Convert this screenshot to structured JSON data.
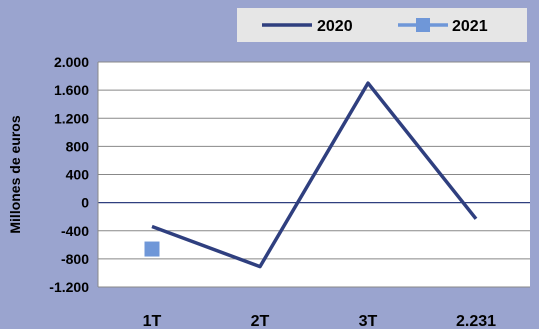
{
  "chart_data": {
    "type": "line",
    "categories": [
      "1T",
      "2T",
      "3T",
      "2.231"
    ],
    "series": [
      {
        "name": "2020",
        "values": [
          -340,
          -910,
          1700,
          -230
        ],
        "color": "#2f3f7f",
        "marker": "none"
      },
      {
        "name": "2021",
        "values": [
          -660,
          null,
          null,
          null
        ],
        "color": "#6f97d8",
        "marker": "square"
      }
    ],
    "title": "",
    "xlabel": "",
    "ylabel": "Millones de euros",
    "ylim": [
      -1200,
      2000
    ],
    "yticks": [
      2000,
      1600,
      1200,
      800,
      400,
      0,
      -400,
      -800,
      -1200
    ],
    "ytick_labels": [
      "2.000",
      "1.600",
      "1.200",
      "800",
      "400",
      "0",
      "-400",
      "-800",
      "-1.200"
    ],
    "grid": true,
    "legend_position": "top-right"
  },
  "colors": {
    "background": "#9aa4cf",
    "plot_area": "#ffffff",
    "gridline": "#888888",
    "zero_line": "#2f3f7f",
    "legend_box": "#e6e6e6",
    "text": "#000000"
  }
}
